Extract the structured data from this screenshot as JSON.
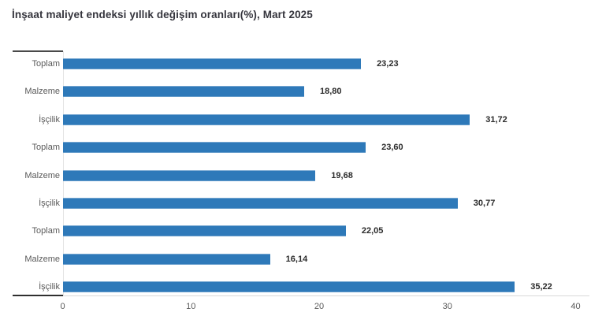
{
  "title": "İnşaat maliyet endeksi yıllık değişim oranları(%), Mart 2025",
  "chart_data": {
    "type": "bar",
    "orientation": "horizontal",
    "title": "İnşaat maliyet endeksi yıllık değişim oranları(%), Mart 2025",
    "categories": [
      "Toplam",
      "Malzeme",
      "İşçilik",
      "Toplam",
      "Malzeme",
      "İşçilik",
      "Toplam",
      "Malzeme",
      "İşçilik"
    ],
    "values": [
      23.23,
      18.8,
      31.72,
      23.6,
      19.68,
      30.77,
      22.05,
      16.14,
      35.22
    ],
    "value_labels": [
      "23,23",
      "18,80",
      "31,72",
      "23,60",
      "19,68",
      "30,77",
      "22,05",
      "16,14",
      "35,22"
    ],
    "xlim": [
      0,
      40
    ],
    "x_ticks": [
      "0",
      "10",
      "20",
      "30",
      "40"
    ],
    "x_tick_values": [
      0,
      10,
      20,
      30,
      40
    ],
    "grid": false,
    "legend": false,
    "bar_color": "#2e79b9",
    "category_label_color": "#595959",
    "value_label_color": "#2b2b2b",
    "title_color": "#35353d"
  }
}
